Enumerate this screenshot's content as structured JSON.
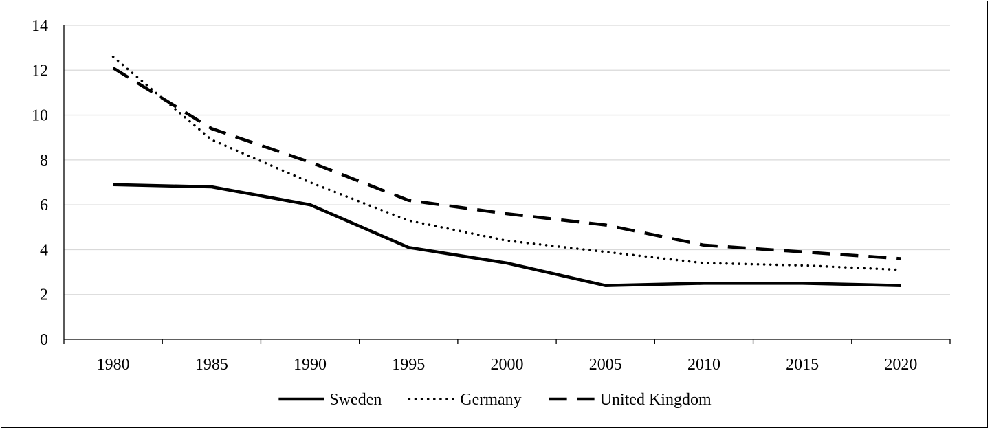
{
  "chart_data": {
    "type": "line",
    "title": "",
    "xlabel": "",
    "ylabel": "",
    "categories": [
      "1980",
      "1985",
      "1990",
      "1995",
      "2000",
      "2005",
      "2010",
      "2015",
      "2020"
    ],
    "ylim": [
      0,
      14
    ],
    "yticks": [
      "0",
      "2",
      "4",
      "6",
      "8",
      "10",
      "12",
      "14"
    ],
    "grid": true,
    "legend_position": "bottom",
    "series": [
      {
        "name": "Sweden",
        "values": [
          6.9,
          6.8,
          6.0,
          4.1,
          3.4,
          2.4,
          2.5,
          2.5,
          2.4
        ],
        "style": "solid",
        "color": "#000000"
      },
      {
        "name": "Germany",
        "values": [
          12.6,
          8.9,
          7.0,
          5.3,
          4.4,
          3.9,
          3.4,
          3.3,
          3.1
        ],
        "style": "dotted",
        "color": "#000000"
      },
      {
        "name": "United Kingdom",
        "values": [
          12.1,
          9.4,
          7.9,
          6.2,
          5.6,
          5.1,
          4.2,
          3.9,
          3.6
        ],
        "style": "dashed",
        "color": "#000000"
      }
    ]
  }
}
